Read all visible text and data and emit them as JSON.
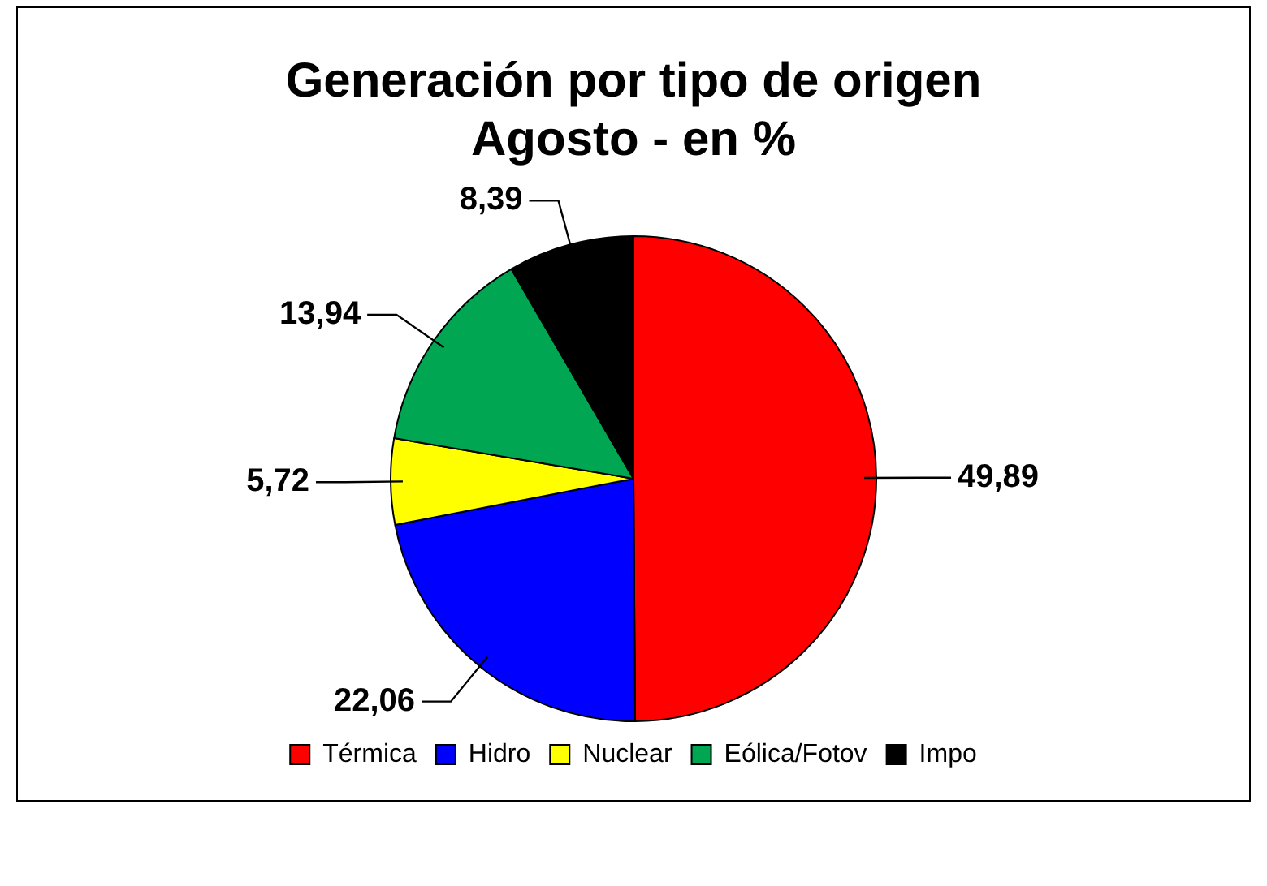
{
  "chart_data": {
    "type": "pie",
    "title": "Generación por tipo de origen\nAgosto - en %",
    "categories": [
      "Térmica",
      "Hidro",
      "Nuclear",
      "Eólica/Fotov",
      "Impo"
    ],
    "values": [
      49.89,
      22.06,
      5.72,
      13.94,
      8.39
    ],
    "colors": [
      "#ff0000",
      "#0000ff",
      "#ffff00",
      "#00a651",
      "#000000"
    ],
    "value_labels": [
      "49,89",
      "22,06",
      "5,72",
      "13,94",
      "8,39"
    ],
    "legend": "bottom"
  }
}
